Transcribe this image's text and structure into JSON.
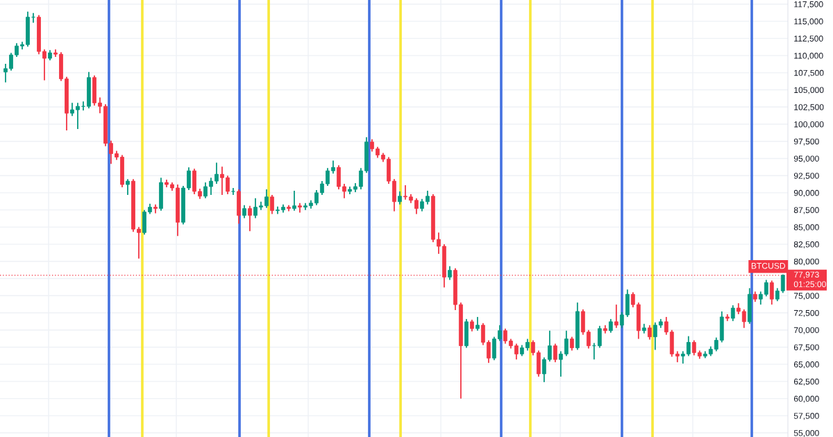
{
  "chart_data": {
    "type": "candlestick",
    "categories": [
      null,
      null,
      null,
      null,
      null,
      null,
      null,
      null,
      null,
      null,
      null,
      null,
      null,
      null,
      null,
      null,
      null,
      null,
      null,
      null,
      null,
      null,
      null,
      null,
      null,
      null,
      null,
      null,
      null,
      null,
      null,
      null,
      null,
      null,
      null,
      null,
      null,
      null,
      null,
      null,
      null,
      null,
      null,
      null,
      null,
      null,
      null,
      null,
      null,
      null,
      null,
      null,
      null,
      null,
      null,
      null,
      null,
      null,
      null,
      null,
      null,
      null,
      null,
      null,
      null,
      null,
      null,
      null,
      null,
      null,
      null,
      null,
      null,
      null,
      null,
      null,
      null,
      null,
      null,
      null,
      null,
      null,
      null,
      null,
      null,
      null,
      null,
      null,
      null,
      null,
      null,
      null,
      null,
      null,
      null,
      null,
      null,
      null,
      null,
      null,
      null,
      null,
      null,
      null,
      null,
      null,
      null,
      null,
      null,
      null,
      null,
      null,
      null,
      null,
      null,
      null,
      null,
      null,
      null,
      null,
      null,
      null,
      null,
      null,
      null,
      null,
      null,
      null,
      null,
      null,
      null,
      null,
      null,
      null,
      null,
      null,
      null,
      null,
      null,
      null,
      null
    ],
    "ohlc": [
      [
        107600,
        108800,
        106100,
        108100
      ],
      [
        108100,
        110400,
        107800,
        110100
      ],
      [
        110100,
        111800,
        109800,
        111400
      ],
      [
        111400,
        112000,
        110900,
        111600
      ],
      [
        111600,
        116400,
        111300,
        115600
      ],
      [
        115600,
        116200,
        114800,
        115600
      ],
      [
        115600,
        115900,
        110200,
        110600
      ],
      [
        110600,
        110900,
        106400,
        109600
      ],
      [
        109600,
        110800,
        109300,
        110400
      ],
      [
        110400,
        110900,
        109800,
        110200
      ],
      [
        110200,
        110500,
        106300,
        106600
      ],
      [
        106600,
        106900,
        99100,
        101600
      ],
      [
        101600,
        103100,
        101200,
        102100
      ],
      [
        102100,
        103100,
        99300,
        102600
      ],
      [
        102600,
        103300,
        102000,
        102600
      ],
      [
        102600,
        107600,
        102300,
        106800
      ],
      [
        106800,
        107100,
        102700,
        103100
      ],
      [
        103100,
        103900,
        101600,
        102600
      ],
      [
        102600,
        102900,
        96800,
        97200
      ],
      [
        97200,
        97600,
        94200,
        95700
      ],
      [
        95700,
        96100,
        94800,
        95200
      ],
      [
        95200,
        95500,
        90800,
        91200
      ],
      [
        91200,
        92000,
        89700,
        91700
      ],
      [
        91700,
        92000,
        84300,
        84700
      ],
      [
        84700,
        85000,
        80400,
        84200
      ],
      [
        84200,
        87500,
        83900,
        87200
      ],
      [
        87200,
        88400,
        86900,
        87900
      ],
      [
        87900,
        88300,
        87000,
        87700
      ],
      [
        87700,
        92200,
        87400,
        91500
      ],
      [
        91500,
        91900,
        90800,
        91200
      ],
      [
        91200,
        91500,
        90300,
        90700
      ],
      [
        90700,
        91200,
        83700,
        85700
      ],
      [
        85700,
        91000,
        85400,
        90700
      ],
      [
        90700,
        93700,
        90400,
        93200
      ],
      [
        93200,
        93500,
        89800,
        90200
      ],
      [
        90200,
        90600,
        89100,
        89500
      ],
      [
        89500,
        91500,
        89200,
        90900
      ],
      [
        90900,
        92200,
        89700,
        91700
      ],
      [
        91700,
        94400,
        91300,
        92700
      ],
      [
        92700,
        93800,
        89700,
        92200
      ],
      [
        92200,
        92500,
        89800,
        90200
      ],
      [
        90200,
        90700,
        89700,
        90200
      ],
      [
        90200,
        90500,
        85500,
        86700
      ],
      [
        86700,
        88200,
        86300,
        87700
      ],
      [
        87700,
        88100,
        84400,
        86700
      ],
      [
        86700,
        89200,
        86300,
        87900
      ],
      [
        87900,
        88700,
        87500,
        88100
      ],
      [
        88100,
        90500,
        87800,
        89400
      ],
      [
        89400,
        89700,
        86900,
        87400
      ],
      [
        87400,
        88000,
        86900,
        87500
      ],
      [
        87500,
        88300,
        87100,
        87900
      ],
      [
        87900,
        88200,
        87300,
        87700
      ],
      [
        87700,
        90300,
        87400,
        88100
      ],
      [
        88100,
        88500,
        87100,
        87900
      ],
      [
        87900,
        88500,
        87500,
        88100
      ],
      [
        88100,
        88900,
        87700,
        88500
      ],
      [
        88500,
        90400,
        88200,
        90000
      ],
      [
        90000,
        91700,
        89700,
        91300
      ],
      [
        91300,
        93600,
        91000,
        93200
      ],
      [
        93200,
        94700,
        92800,
        93700
      ],
      [
        93700,
        94000,
        90500,
        90900
      ],
      [
        90900,
        91300,
        89200,
        90200
      ],
      [
        90200,
        90900,
        89800,
        90500
      ],
      [
        90500,
        91400,
        90100,
        90900
      ],
      [
        90900,
        93600,
        90500,
        93200
      ],
      [
        93200,
        98100,
        92900,
        97400
      ],
      [
        97400,
        97800,
        96000,
        96400
      ],
      [
        96400,
        96700,
        95100,
        95500
      ],
      [
        95500,
        95800,
        94500,
        94900
      ],
      [
        94900,
        95200,
        91300,
        91700
      ],
      [
        91700,
        92000,
        87300,
        88700
      ],
      [
        88700,
        90200,
        88300,
        89500
      ],
      [
        89500,
        91100,
        89000,
        89400
      ],
      [
        89400,
        89800,
        88500,
        88900
      ],
      [
        88900,
        89200,
        86900,
        87700
      ],
      [
        87700,
        89100,
        87300,
        88700
      ],
      [
        88700,
        90300,
        88300,
        89500
      ],
      [
        89500,
        89800,
        82800,
        83200
      ],
      [
        83200,
        84200,
        81100,
        82200
      ],
      [
        82200,
        82500,
        76200,
        77700
      ],
      [
        77700,
        79300,
        77300,
        78700
      ],
      [
        78700,
        79000,
        72900,
        73700
      ],
      [
        73700,
        74000,
        60000,
        67700
      ],
      [
        67700,
        71600,
        67400,
        71200
      ],
      [
        71200,
        71500,
        69800,
        70200
      ],
      [
        70200,
        71900,
        69900,
        70700
      ],
      [
        70700,
        71000,
        67800,
        68200
      ],
      [
        68200,
        68500,
        65200,
        65900
      ],
      [
        65900,
        69000,
        65600,
        68700
      ],
      [
        68700,
        70700,
        68400,
        69900
      ],
      [
        69900,
        70200,
        68000,
        68400
      ],
      [
        68400,
        68700,
        67300,
        67700
      ],
      [
        67700,
        68000,
        65700,
        66500
      ],
      [
        66500,
        67800,
        66200,
        67400
      ],
      [
        67400,
        68700,
        67000,
        68200
      ],
      [
        68200,
        68500,
        66300,
        66700
      ],
      [
        66700,
        67000,
        63200,
        63600
      ],
      [
        63600,
        66000,
        62400,
        65700
      ],
      [
        65700,
        69900,
        65400,
        67700
      ],
      [
        67700,
        68000,
        65300,
        65700
      ],
      [
        65700,
        66900,
        63200,
        66500
      ],
      [
        66500,
        69900,
        66200,
        68700
      ],
      [
        68700,
        69000,
        67000,
        67400
      ],
      [
        67400,
        74000,
        67100,
        72700
      ],
      [
        72700,
        73000,
        69300,
        69700
      ],
      [
        69700,
        70000,
        67300,
        67700
      ],
      [
        67700,
        68100,
        65700,
        67700
      ],
      [
        67700,
        70600,
        67400,
        70200
      ],
      [
        70200,
        70700,
        69500,
        69900
      ],
      [
        69900,
        71600,
        69600,
        71200
      ],
      [
        71200,
        73700,
        70300,
        70700
      ],
      [
        70700,
        72600,
        70300,
        72200
      ],
      [
        72200,
        75900,
        71900,
        75200
      ],
      [
        75200,
        75500,
        73300,
        73700
      ],
      [
        73700,
        74000,
        68700,
        69900
      ],
      [
        69900,
        70900,
        69500,
        70300
      ],
      [
        70300,
        70700,
        68600,
        69000
      ],
      [
        69000,
        71100,
        67100,
        70700
      ],
      [
        70700,
        71600,
        70300,
        71200
      ],
      [
        71200,
        71900,
        69300,
        69700
      ],
      [
        69700,
        70000,
        66100,
        66500
      ],
      [
        66500,
        66900,
        65300,
        66200
      ],
      [
        66200,
        66900,
        65100,
        66500
      ],
      [
        66500,
        69100,
        66200,
        68200
      ],
      [
        68200,
        68500,
        66300,
        66700
      ],
      [
        66700,
        67000,
        65800,
        66200
      ],
      [
        66200,
        66900,
        65900,
        66500
      ],
      [
        66500,
        67600,
        66200,
        67200
      ],
      [
        67200,
        68900,
        66900,
        68500
      ],
      [
        68500,
        72700,
        68200,
        71900
      ],
      [
        71900,
        72300,
        71300,
        71700
      ],
      [
        71700,
        73600,
        71300,
        73200
      ],
      [
        73200,
        73900,
        72300,
        72700
      ],
      [
        72700,
        73000,
        70300,
        71200
      ],
      [
        71200,
        76100,
        70900,
        75200
      ],
      [
        75200,
        75600,
        74100,
        74500
      ],
      [
        74500,
        75600,
        73700,
        75200
      ],
      [
        75200,
        77300,
        74900,
        76900
      ],
      [
        76900,
        77200,
        73700,
        74500
      ],
      [
        74500,
        76100,
        74200,
        75700
      ],
      [
        75700,
        78100,
        75400,
        77973
      ]
    ],
    "ylim": [
      54400,
      118100
    ],
    "yticks": [
      {
        "value": 55000,
        "label": "55,000"
      },
      {
        "value": 57500,
        "label": "57,500"
      },
      {
        "value": 60000,
        "label": "60,000"
      },
      {
        "value": 62500,
        "label": "62,500"
      },
      {
        "value": 65000,
        "label": "65,000"
      },
      {
        "value": 67500,
        "label": "67,500"
      },
      {
        "value": 70000,
        "label": "70,000"
      },
      {
        "value": 72500,
        "label": "72,500"
      },
      {
        "value": 75000,
        "label": "75,000"
      },
      {
        "value": 77500,
        "label": null
      },
      {
        "value": 80000,
        "label": "80,000"
      },
      {
        "value": 82500,
        "label": "82,500"
      },
      {
        "value": 85000,
        "label": "85,000"
      },
      {
        "value": 87500,
        "label": "87,500"
      },
      {
        "value": 90000,
        "label": "90,000"
      },
      {
        "value": 92500,
        "label": "92,500"
      },
      {
        "value": 95000,
        "label": "95,000"
      },
      {
        "value": 97500,
        "label": "97,500"
      },
      {
        "value": 100000,
        "label": "100,000"
      },
      {
        "value": 102500,
        "label": "102,500"
      },
      {
        "value": 105000,
        "label": "105,000"
      },
      {
        "value": 107500,
        "label": "107,500"
      },
      {
        "value": 110000,
        "label": "110,000"
      },
      {
        "value": 112500,
        "label": "112,500"
      },
      {
        "value": 115000,
        "label": "115,000"
      },
      {
        "value": 117500,
        "label": "117,500"
      }
    ],
    "grid": true,
    "tick_labels": "y",
    "ref_lines": [
      {
        "axis": "y",
        "value": 77973,
        "label": "BTCUSD",
        "color": "#f23645",
        "line_style": "dotted"
      }
    ],
    "annotations": [
      "77,973",
      "01:25:00"
    ]
  }
}
